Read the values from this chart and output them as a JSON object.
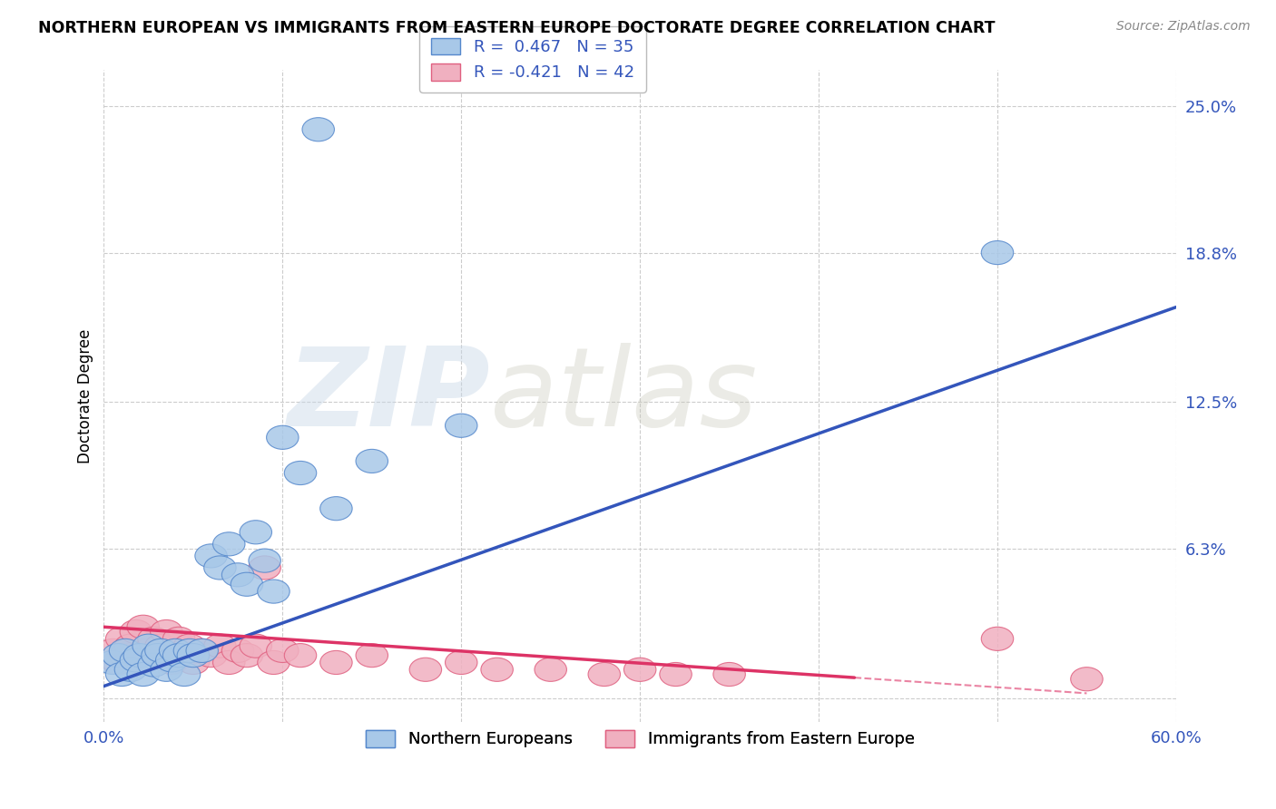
{
  "title": "NORTHERN EUROPEAN VS IMMIGRANTS FROM EASTERN EUROPE DOCTORATE DEGREE CORRELATION CHART",
  "source": "Source: ZipAtlas.com",
  "ylabel": "Doctorate Degree",
  "xlim": [
    0.0,
    0.6
  ],
  "ylim": [
    -0.01,
    0.265
  ],
  "ytick_positions": [
    0.0,
    0.063,
    0.125,
    0.188,
    0.25
  ],
  "ytick_labels": [
    "",
    "6.3%",
    "12.5%",
    "18.8%",
    "25.0%"
  ],
  "blue_color": "#a8c8e8",
  "pink_color": "#f0b0c0",
  "blue_edge_color": "#5588cc",
  "pink_edge_color": "#e06080",
  "blue_line_color": "#3355bb",
  "pink_line_color": "#dd3366",
  "watermark_zip": "ZIP",
  "watermark_atlas": "atlas",
  "blue_scatter_x": [
    0.005,
    0.008,
    0.01,
    0.012,
    0.015,
    0.018,
    0.02,
    0.022,
    0.025,
    0.028,
    0.03,
    0.032,
    0.035,
    0.038,
    0.04,
    0.042,
    0.045,
    0.048,
    0.05,
    0.055,
    0.06,
    0.065,
    0.07,
    0.075,
    0.08,
    0.085,
    0.09,
    0.095,
    0.1,
    0.11,
    0.13,
    0.15,
    0.2,
    0.5,
    0.12
  ],
  "blue_scatter_y": [
    0.015,
    0.018,
    0.01,
    0.02,
    0.012,
    0.016,
    0.018,
    0.01,
    0.022,
    0.014,
    0.018,
    0.02,
    0.012,
    0.016,
    0.02,
    0.018,
    0.01,
    0.02,
    0.018,
    0.02,
    0.06,
    0.055,
    0.065,
    0.052,
    0.048,
    0.07,
    0.058,
    0.045,
    0.11,
    0.095,
    0.08,
    0.1,
    0.115,
    0.188,
    0.24
  ],
  "pink_scatter_x": [
    0.005,
    0.008,
    0.01,
    0.012,
    0.015,
    0.018,
    0.02,
    0.022,
    0.025,
    0.028,
    0.03,
    0.032,
    0.035,
    0.038,
    0.04,
    0.042,
    0.045,
    0.048,
    0.05,
    0.055,
    0.06,
    0.065,
    0.07,
    0.075,
    0.08,
    0.085,
    0.09,
    0.095,
    0.1,
    0.11,
    0.13,
    0.15,
    0.18,
    0.2,
    0.22,
    0.25,
    0.28,
    0.3,
    0.32,
    0.35,
    0.5,
    0.55
  ],
  "pink_scatter_y": [
    0.02,
    0.015,
    0.025,
    0.018,
    0.022,
    0.028,
    0.015,
    0.03,
    0.02,
    0.025,
    0.018,
    0.022,
    0.028,
    0.015,
    0.02,
    0.025,
    0.018,
    0.022,
    0.015,
    0.02,
    0.018,
    0.022,
    0.015,
    0.02,
    0.018,
    0.022,
    0.055,
    0.015,
    0.02,
    0.018,
    0.015,
    0.018,
    0.012,
    0.015,
    0.012,
    0.012,
    0.01,
    0.012,
    0.01,
    0.01,
    0.025,
    0.008
  ],
  "blue_line_x": [
    0.0,
    0.6
  ],
  "blue_line_y": [
    0.005,
    0.165
  ],
  "pink_line_x": [
    0.0,
    0.55
  ],
  "pink_line_y": [
    0.03,
    0.002
  ],
  "pink_line_solid_end": 0.42,
  "legend_blue_label": "R =  0.467   N = 35",
  "legend_pink_label": "R = -0.421   N = 42",
  "legend_bottom_blue": "Northern Europeans",
  "legend_bottom_pink": "Immigrants from Eastern Europe"
}
